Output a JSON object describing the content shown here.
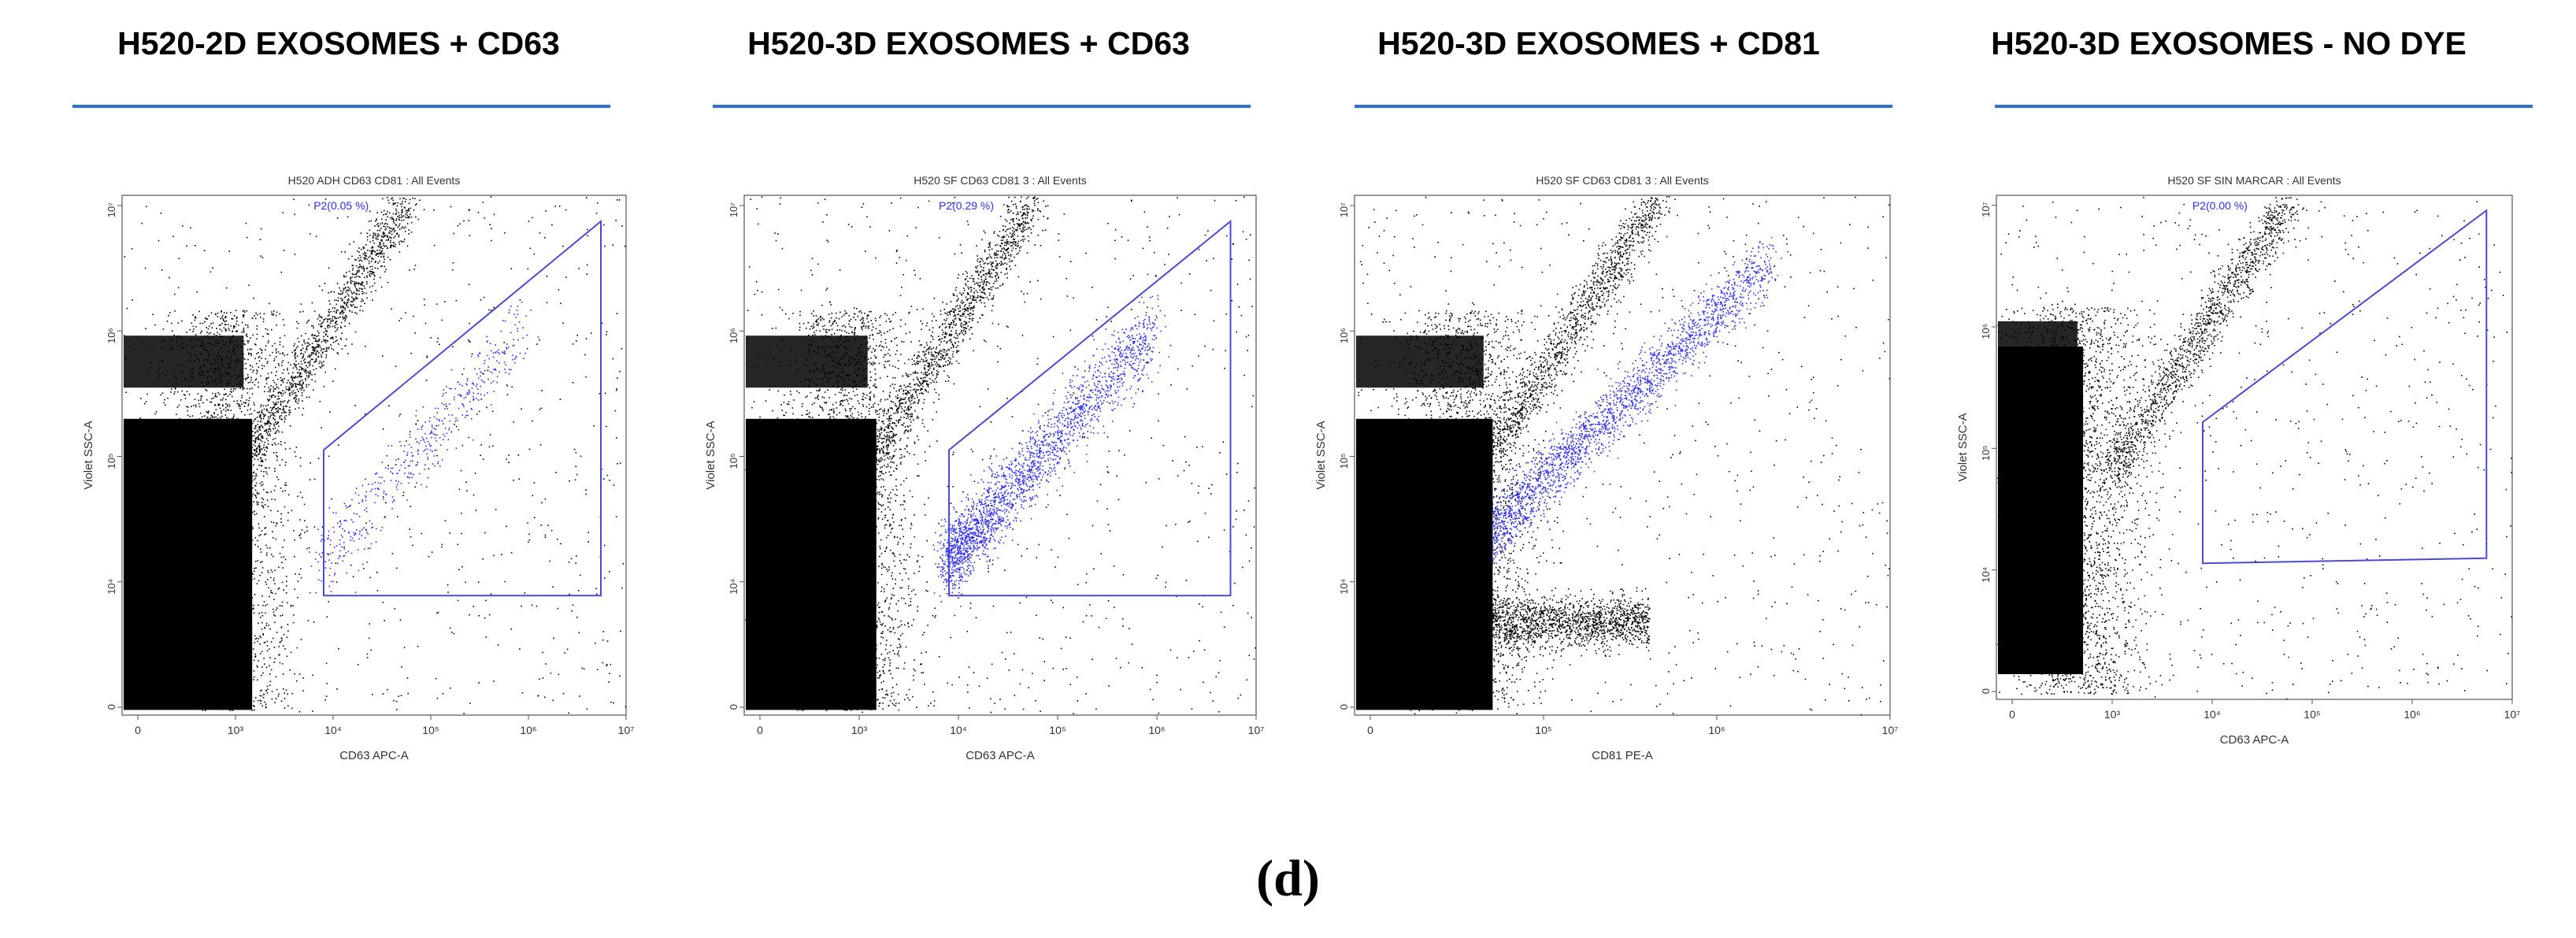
{
  "figure_label": "(d)",
  "colors": {
    "events": "#000000",
    "gated": "#2b2bff",
    "gate": "#4a4ad8",
    "rule": "#2f6fd0"
  },
  "chart_data": [
    {
      "type": "scatter",
      "heading": "H520-2D EXOSOMES + CD63",
      "title": "H520 ADH CD63 CD81 : All Events",
      "xlabel": "CD63 APC-A",
      "ylabel": "Violet SSC-A",
      "gate_label": "P2(0.05 %)",
      "xticks": [
        "0",
        "10³",
        "10⁴",
        "10⁵",
        "10⁶",
        "10⁷"
      ],
      "yticks": [
        "0",
        "10⁴",
        "10⁵",
        "10⁶",
        "10⁷"
      ],
      "grid": false
    },
    {
      "type": "scatter",
      "heading": "H520-3D EXOSOMES + CD63",
      "title": "H520 SF CD63 CD81 3 : All Events",
      "xlabel": "CD63 APC-A",
      "ylabel": "Violet SSC-A",
      "gate_label": "P2(0.29 %)",
      "xticks": [
        "0",
        "10³",
        "10⁴",
        "10⁵",
        "10⁶",
        "10⁷"
      ],
      "yticks": [
        "0",
        "10⁴",
        "10⁵",
        "10⁶",
        "10⁷"
      ],
      "grid": false
    },
    {
      "type": "scatter",
      "heading": "H520-3D EXOSOMES + CD81",
      "title": "H520 SF CD63 CD81 3 : All Events",
      "xlabel": "CD81 PE-A",
      "ylabel": "Violet SSC-A",
      "gate_label": "",
      "xticks": [
        "0",
        "10⁵",
        "10⁶",
        "10⁷"
      ],
      "yticks": [
        "0",
        "10⁴",
        "10⁵",
        "10⁶",
        "10⁷"
      ],
      "grid": false
    },
    {
      "type": "scatter",
      "heading": "H520-3D EXOSOMES - NO DYE",
      "title": "H520 SF SIN MARCAR : All Events",
      "xlabel": "CD63 APC-A",
      "ylabel": "Violet SSC-A",
      "gate_label": "P2(0.00 %)",
      "xticks": [
        "0",
        "10³",
        "10⁴",
        "10⁵",
        "10⁶",
        "10⁷"
      ],
      "yticks": [
        "0",
        "10⁴",
        "10⁵",
        "10⁶",
        "10⁷"
      ],
      "grid": false
    }
  ]
}
